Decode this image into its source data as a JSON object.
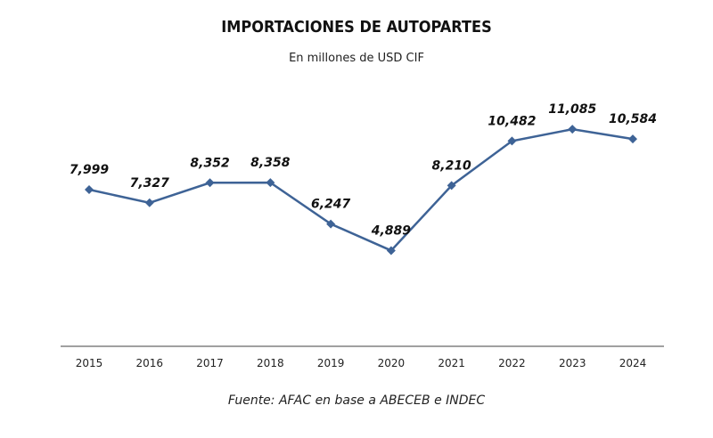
{
  "chart_data": {
    "type": "line",
    "title": "IMPORTACIONES DE AUTOPARTES",
    "subtitle": "En millones de USD CIF",
    "source": "Fuente: AFAC en base a ABECEB e INDEC",
    "categories": [
      "2015",
      "2016",
      "2017",
      "2018",
      "2019",
      "2020",
      "2021",
      "2022",
      "2023",
      "2024"
    ],
    "values": [
      7999,
      7327,
      8352,
      8358,
      6247,
      4889,
      8210,
      10482,
      11085,
      10584
    ],
    "data_labels": [
      "7,999",
      "7,327",
      "8,352",
      "8,358",
      "6,247",
      "4,889",
      "8,210",
      "10,482",
      "11,085",
      "10,584"
    ],
    "ylim": [
      0,
      14000
    ],
    "grid": false,
    "legend": "none",
    "colors": {
      "line": "#3e6396",
      "axis": "#a0a0a0"
    }
  }
}
